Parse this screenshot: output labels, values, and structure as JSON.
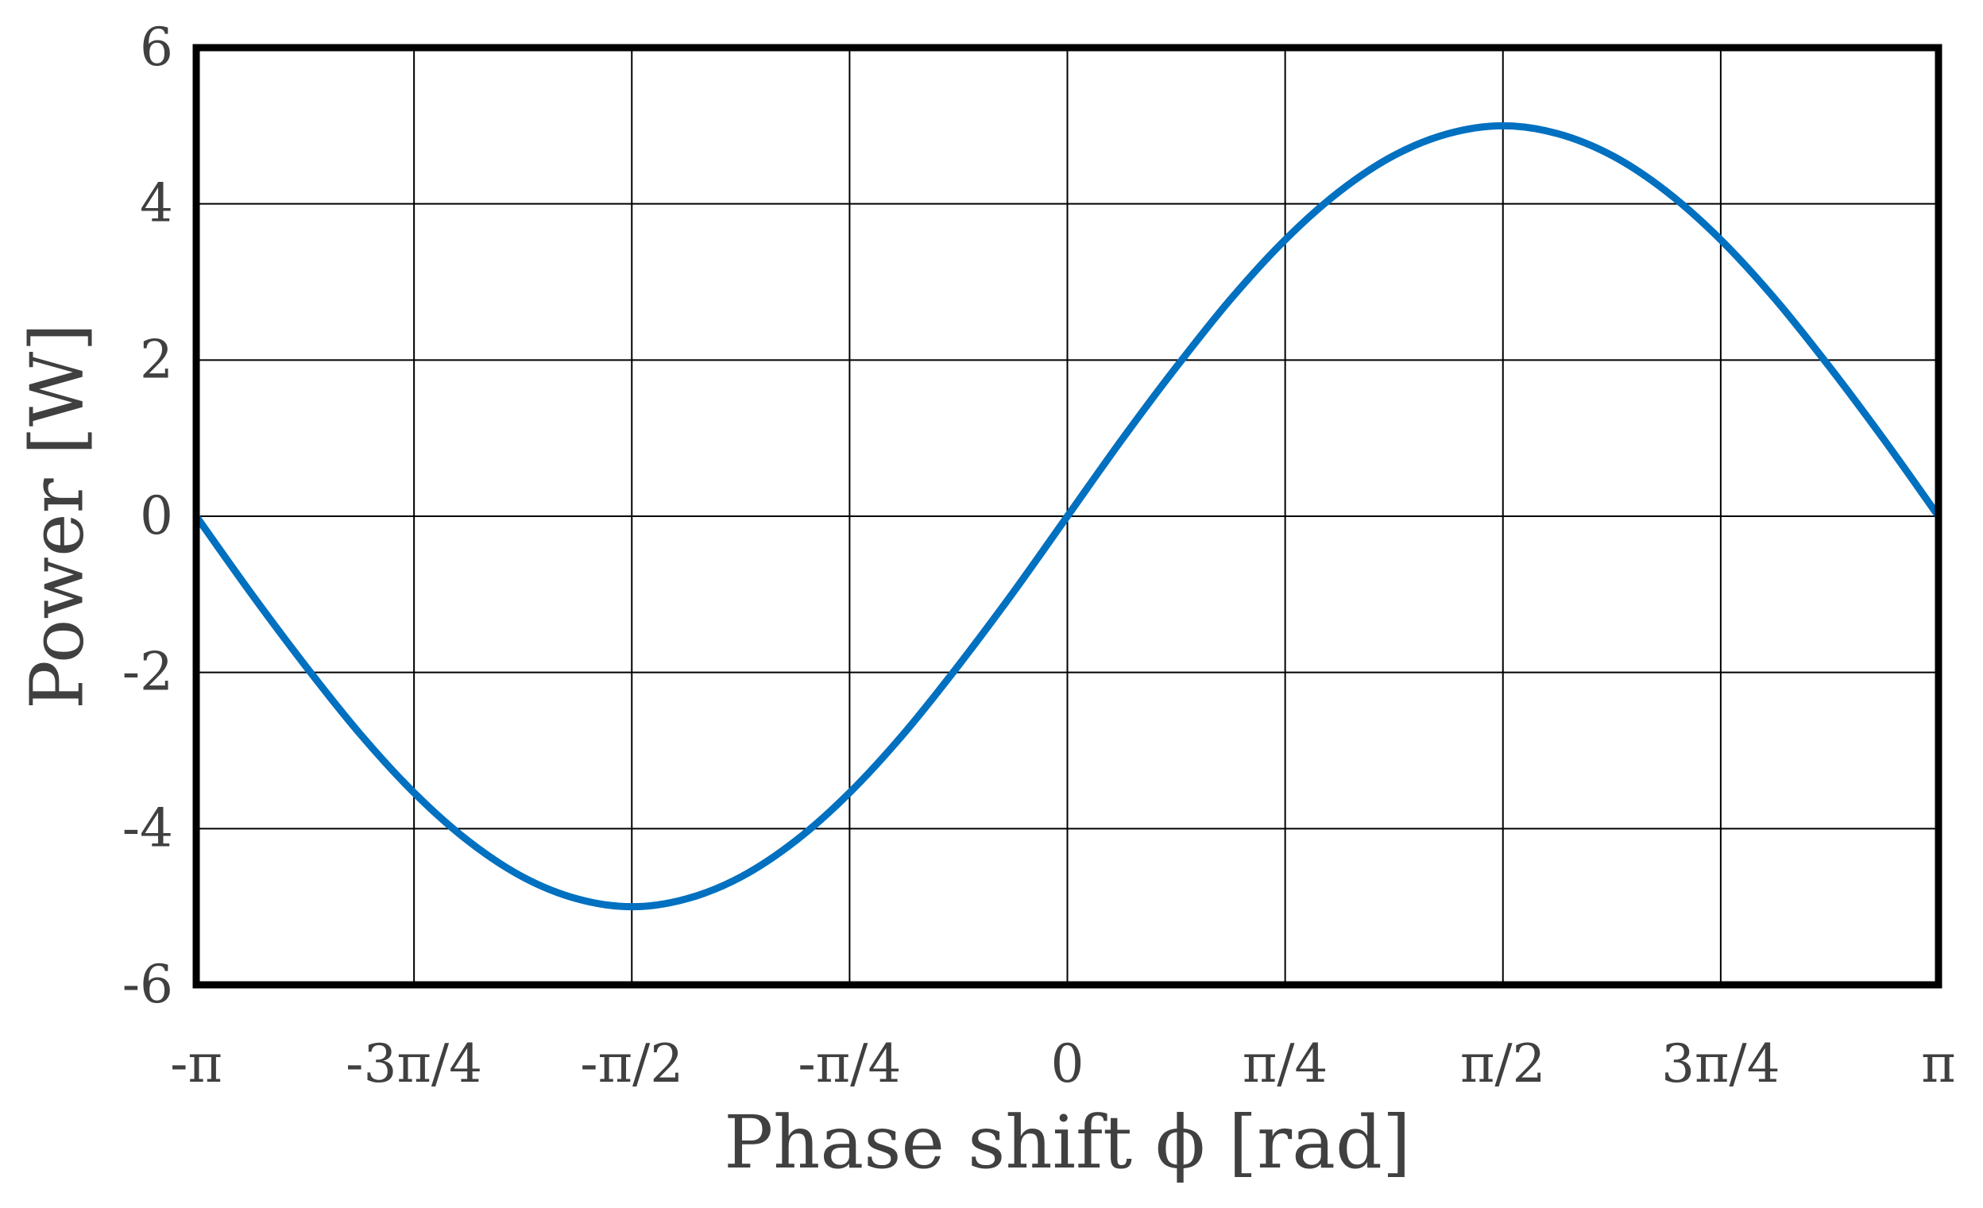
{
  "chart_data": {
    "type": "line",
    "title": "",
    "xlabel": "Phase shift ϕ [rad]",
    "ylabel": "Power [W]",
    "xlim": [
      -3.14159265,
      3.14159265
    ],
    "ylim": [
      -6,
      6
    ],
    "grid": true,
    "x_ticks": [
      {
        "value": -3.14159265,
        "label": "-π"
      },
      {
        "value": -2.35619449,
        "label": "-3π/4"
      },
      {
        "value": -1.57079633,
        "label": "-π/2"
      },
      {
        "value": -0.78539816,
        "label": "-π/4"
      },
      {
        "value": 0,
        "label": "0"
      },
      {
        "value": 0.78539816,
        "label": "π/4"
      },
      {
        "value": 1.57079633,
        "label": "π/2"
      },
      {
        "value": 2.35619449,
        "label": "3π/4"
      },
      {
        "value": 3.14159265,
        "label": "π"
      }
    ],
    "y_ticks": [
      {
        "value": 6,
        "label": "6"
      },
      {
        "value": 4,
        "label": "4"
      },
      {
        "value": 2,
        "label": "2"
      },
      {
        "value": 0,
        "label": "0"
      },
      {
        "value": -2,
        "label": "-2"
      },
      {
        "value": -4,
        "label": "-4"
      },
      {
        "value": -6,
        "label": "-6"
      }
    ],
    "series": [
      {
        "color": "#0070C0",
        "x": [
          -3.1416,
          -2.9452,
          -2.7489,
          -2.5525,
          -2.3562,
          -2.1598,
          -1.9635,
          -1.7671,
          -1.5708,
          -1.3744,
          -1.1781,
          -0.9817,
          -0.7854,
          -0.589,
          -0.3927,
          -0.1963,
          0,
          0.1963,
          0.3927,
          0.589,
          0.7854,
          0.9817,
          1.1781,
          1.3744,
          1.5708,
          1.7671,
          1.9635,
          2.1598,
          2.3562,
          2.5525,
          2.7489,
          2.9452,
          3.1416
        ],
        "y": [
          0,
          -0.98,
          -1.91,
          -2.78,
          -3.54,
          -4.16,
          -4.62,
          -4.9,
          -5.0,
          -4.9,
          -4.62,
          -4.16,
          -3.54,
          -2.78,
          -1.91,
          -0.98,
          0,
          0.98,
          1.91,
          2.78,
          3.54,
          4.16,
          4.62,
          4.9,
          5.0,
          4.9,
          4.62,
          4.16,
          3.54,
          2.78,
          1.91,
          0.98,
          0
        ]
      }
    ]
  }
}
